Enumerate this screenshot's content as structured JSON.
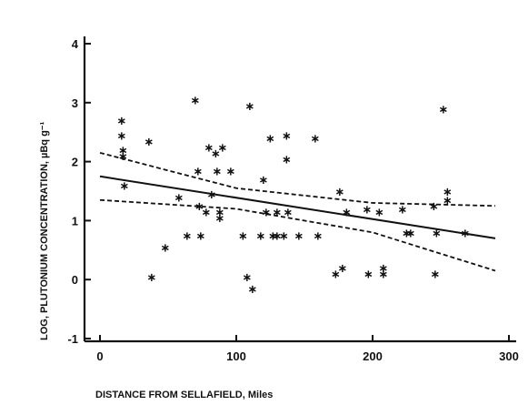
{
  "chart_data": {
    "type": "scatter",
    "title": "",
    "xlabel": "DISTANCE FROM SELLAFIELD, Miles",
    "ylabel": "LOG, PLUTONIUM CONCENTRATION, µBq g⁻¹",
    "xlim": [
      0,
      300
    ],
    "ylim": [
      -1,
      4
    ],
    "xticks": [
      "0",
      "100",
      "200",
      "300"
    ],
    "yticks": [
      "-1",
      "0",
      "1",
      "2",
      "3",
      "4"
    ],
    "xtick_values": [
      0,
      100,
      200,
      300
    ],
    "ytick_values": [
      -1,
      0,
      1,
      2,
      3,
      4
    ],
    "grid": false,
    "legend": "none",
    "points": [
      {
        "x": 16,
        "y": 2.7
      },
      {
        "x": 16,
        "y": 2.45
      },
      {
        "x": 17,
        "y": 2.2
      },
      {
        "x": 17,
        "y": 2.1
      },
      {
        "x": 18,
        "y": 1.6
      },
      {
        "x": 36,
        "y": 2.35
      },
      {
        "x": 38,
        "y": 0.05
      },
      {
        "x": 48,
        "y": 0.55
      },
      {
        "x": 58,
        "y": 1.4
      },
      {
        "x": 64,
        "y": 0.75
      },
      {
        "x": 70,
        "y": 3.05
      },
      {
        "x": 72,
        "y": 1.85
      },
      {
        "x": 73,
        "y": 1.25
      },
      {
        "x": 74,
        "y": 0.75
      },
      {
        "x": 78,
        "y": 1.15
      },
      {
        "x": 80,
        "y": 2.25
      },
      {
        "x": 82,
        "y": 1.45
      },
      {
        "x": 85,
        "y": 2.15
      },
      {
        "x": 86,
        "y": 1.85
      },
      {
        "x": 88,
        "y": 1.05
      },
      {
        "x": 88,
        "y": 1.15
      },
      {
        "x": 90,
        "y": 2.25
      },
      {
        "x": 96,
        "y": 1.85
      },
      {
        "x": 105,
        "y": 0.75
      },
      {
        "x": 108,
        "y": 0.05
      },
      {
        "x": 110,
        "y": 2.95
      },
      {
        "x": 112,
        "y": -0.15
      },
      {
        "x": 118,
        "y": 0.75
      },
      {
        "x": 120,
        "y": 1.7
      },
      {
        "x": 122,
        "y": 1.15
      },
      {
        "x": 125,
        "y": 2.4
      },
      {
        "x": 127,
        "y": 0.75
      },
      {
        "x": 130,
        "y": 1.15
      },
      {
        "x": 130,
        "y": 0.75
      },
      {
        "x": 135,
        "y": 0.75
      },
      {
        "x": 137,
        "y": 2.45
      },
      {
        "x": 137,
        "y": 2.05
      },
      {
        "x": 138,
        "y": 1.15
      },
      {
        "x": 146,
        "y": 0.75
      },
      {
        "x": 158,
        "y": 2.4
      },
      {
        "x": 160,
        "y": 0.75
      },
      {
        "x": 173,
        "y": 0.1
      },
      {
        "x": 176,
        "y": 1.5
      },
      {
        "x": 178,
        "y": 0.2
      },
      {
        "x": 181,
        "y": 1.15
      },
      {
        "x": 196,
        "y": 1.2
      },
      {
        "x": 197,
        "y": 0.1
      },
      {
        "x": 205,
        "y": 1.15
      },
      {
        "x": 208,
        "y": 0.2
      },
      {
        "x": 208,
        "y": 0.1
      },
      {
        "x": 222,
        "y": 1.2
      },
      {
        "x": 225,
        "y": 0.8
      },
      {
        "x": 228,
        "y": 0.8
      },
      {
        "x": 245,
        "y": 1.25
      },
      {
        "x": 246,
        "y": 0.1
      },
      {
        "x": 247,
        "y": 0.8
      },
      {
        "x": 252,
        "y": 2.9
      },
      {
        "x": 255,
        "y": 1.5
      },
      {
        "x": 255,
        "y": 1.35
      },
      {
        "x": 268,
        "y": 0.8
      }
    ],
    "fit_line": {
      "x": [
        0,
        290
      ],
      "y": [
        1.75,
        0.7
      ]
    },
    "ci_upper": {
      "x": [
        0,
        100,
        200,
        290
      ],
      "y": [
        2.15,
        1.55,
        1.3,
        1.25
      ]
    },
    "ci_lower": {
      "x": [
        0,
        100,
        200,
        290
      ],
      "y": [
        1.35,
        1.2,
        0.8,
        0.15
      ]
    }
  }
}
